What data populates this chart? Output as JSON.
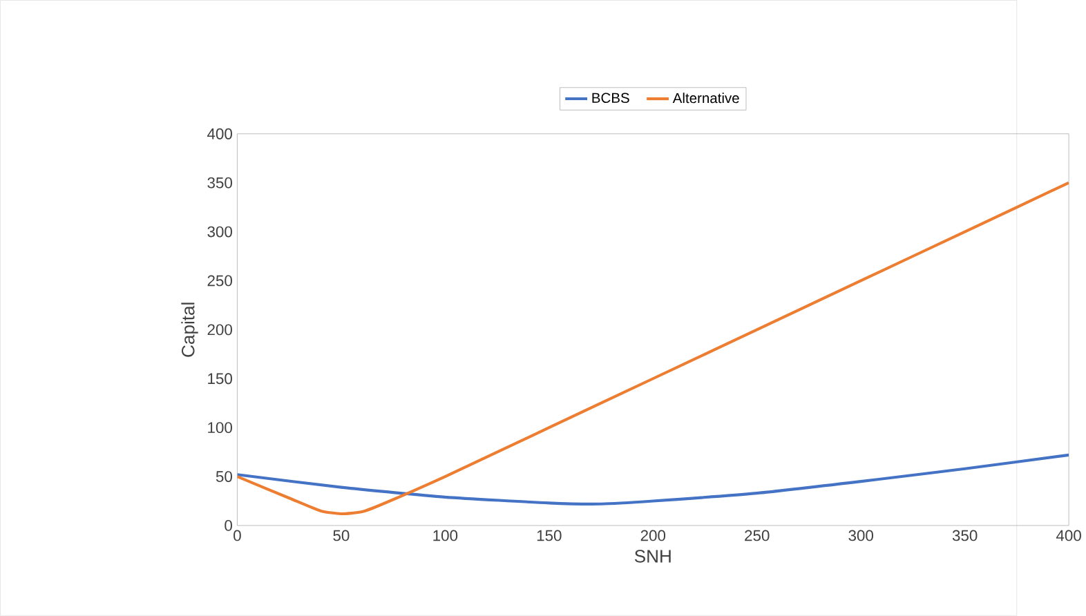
{
  "chart_data": {
    "type": "line",
    "xlabel": "SNH",
    "ylabel": "Capital",
    "xlim": [
      0,
      400
    ],
    "ylim": [
      0,
      400
    ],
    "xticks": [
      0,
      50,
      100,
      150,
      200,
      250,
      300,
      350,
      400
    ],
    "yticks": [
      0,
      50,
      100,
      150,
      200,
      250,
      300,
      350,
      400
    ],
    "legend": "top",
    "line_style": "solid",
    "marker": "none",
    "series": [
      {
        "name": "BCBS",
        "color": "#4472c4",
        "x": [
          0,
          50,
          100,
          150,
          175,
          200,
          250,
          300,
          350,
          400
        ],
        "values": [
          52,
          39,
          29,
          23,
          22,
          25,
          33,
          45,
          58,
          72
        ]
      },
      {
        "name": "Alternative",
        "color": "#ed7d31",
        "x": [
          0,
          25,
          40,
          50,
          60,
          70,
          100,
          150,
          200,
          250,
          300,
          350,
          400
        ],
        "values": [
          50,
          28,
          15,
          12,
          14,
          22,
          50,
          100,
          150,
          200,
          250,
          300,
          350
        ]
      }
    ]
  }
}
